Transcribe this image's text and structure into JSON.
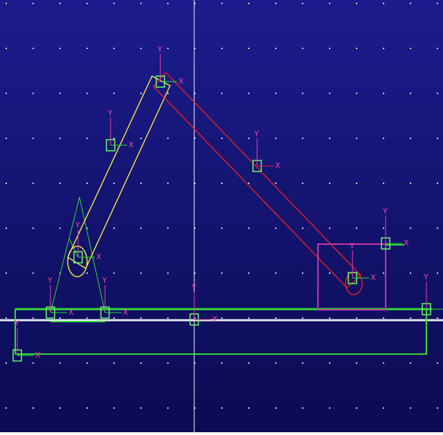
{
  "viewport": {
    "markers": [
      {
        "y_label": "Y",
        "x_label": "X"
      },
      {
        "y_label": "Y",
        "x_label": "X"
      },
      {
        "y_label": "Y",
        "x_label": "X"
      },
      {
        "y_label": "Y",
        "x_label": "X"
      },
      {
        "y_label": "Y",
        "x_label": "X"
      },
      {
        "y_label": "Y",
        "x_label": "X"
      },
      {
        "y_label": "Y",
        "x_label": "X"
      },
      {
        "y_label": "Y",
        "x_label": "X"
      },
      {
        "y_label": "Y",
        "x_label": "X"
      },
      {
        "y_label": "Y",
        "x_label": "X"
      },
      {
        "y_label": "Y",
        "x_label": "X"
      }
    ]
  }
}
